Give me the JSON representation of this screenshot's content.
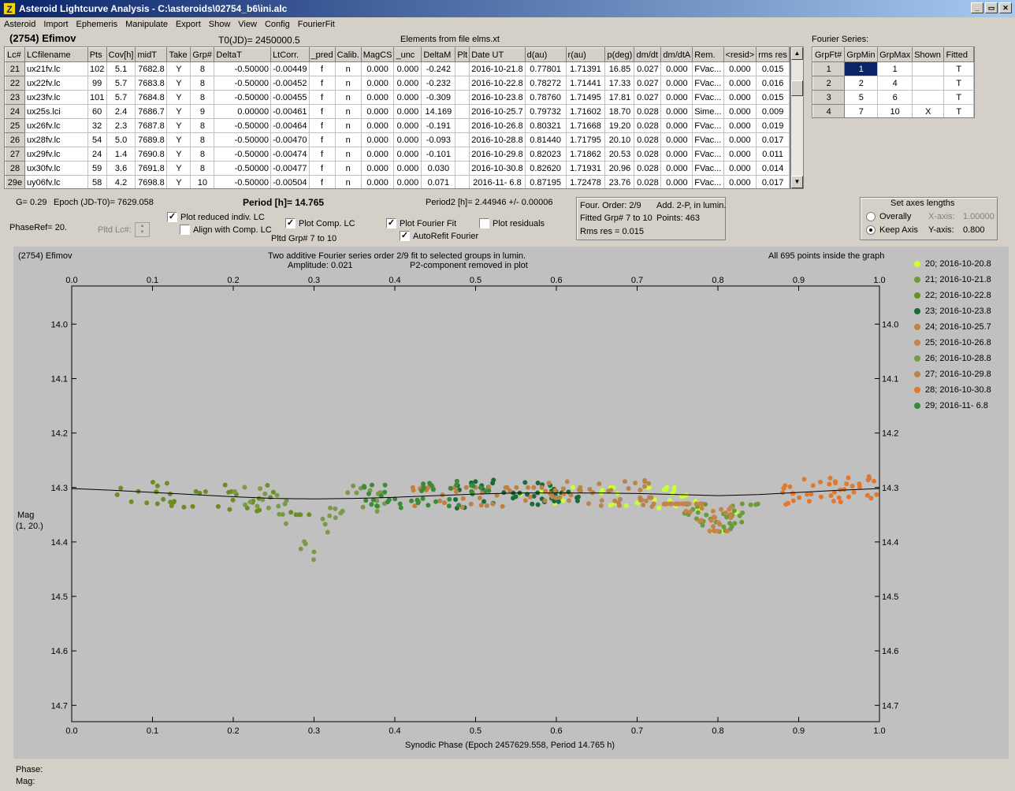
{
  "window": {
    "title": "Asteroid Lightcurve Analysis - C:\\asteroids\\02754_b6\\ini.alc",
    "icon_name": "app-icon",
    "icon_glyph": "Z",
    "min_label": "_",
    "max_label": "▭",
    "close_label": "✕"
  },
  "menu": [
    "Asteroid",
    "Import",
    "Ephemeris",
    "Manipulate",
    "Export",
    "Show",
    "View",
    "Config",
    "FourierFit"
  ],
  "header": {
    "asteroid": "(2754) Efimov",
    "t0": "T0(JD)= 2450000.5",
    "elements": "Elements from file elms.xt",
    "fourier_label": "Fourier Series:"
  },
  "lc_table": {
    "columns": [
      "Lc#",
      "LCfilename",
      "Pts",
      "Cov[h]",
      "midT",
      "Take",
      "Grp#",
      "DeltaT",
      "LtCorr.",
      "_pred",
      "Calib.",
      "MagCS",
      "_unc",
      "DeltaM",
      "Plt",
      "Date UT",
      "d(au)",
      "r(au)",
      "p(deg)",
      "dm/dt",
      "dm/dtA",
      "Rem.",
      "<resid>",
      "rms res"
    ],
    "rows": [
      [
        "21",
        "ux21fv.lc",
        "102",
        "5.1",
        "7682.8",
        "Y",
        "8",
        "-0.50000",
        "-0.00449",
        "f",
        "n",
        "0.000",
        "0.000",
        "-0.242",
        "",
        "2016-10-21.8",
        "0.77801",
        "1.71391",
        "16.85",
        "0.027",
        "0.000",
        "FVac...",
        "0.000",
        "0.015"
      ],
      [
        "22",
        "ux22fv.lc",
        "99",
        "5.7",
        "7683.8",
        "Y",
        "8",
        "-0.50000",
        "-0.00452",
        "f",
        "n",
        "0.000",
        "0.000",
        "-0.232",
        "",
        "2016-10-22.8",
        "0.78272",
        "1.71441",
        "17.33",
        "0.027",
        "0.000",
        "FVac...",
        "0.000",
        "0.016"
      ],
      [
        "23",
        "ux23fv.lc",
        "101",
        "5.7",
        "7684.8",
        "Y",
        "8",
        "-0.50000",
        "-0.00455",
        "f",
        "n",
        "0.000",
        "0.000",
        "-0.309",
        "",
        "2016-10-23.8",
        "0.78760",
        "1.71495",
        "17.81",
        "0.027",
        "0.000",
        "FVac...",
        "0.000",
        "0.015"
      ],
      [
        "24",
        "ux25s.lci",
        "60",
        "2.4",
        "7686.7",
        "Y",
        "9",
        "0.00000",
        "-0.00461",
        "f",
        "n",
        "0.000",
        "0.000",
        "14.169",
        "",
        "2016-10-25.7",
        "0.79732",
        "1.71602",
        "18.70",
        "0.028",
        "0.000",
        "Sime...",
        "0.000",
        "0.009"
      ],
      [
        "25",
        "ux26fv.lc",
        "32",
        "2.3",
        "7687.8",
        "Y",
        "8",
        "-0.50000",
        "-0.00464",
        "f",
        "n",
        "0.000",
        "0.000",
        "-0.191",
        "",
        "2016-10-26.8",
        "0.80321",
        "1.71668",
        "19.20",
        "0.028",
        "0.000",
        "FVac...",
        "0.000",
        "0.019"
      ],
      [
        "26",
        "ux28fv.lc",
        "54",
        "5.0",
        "7689.8",
        "Y",
        "8",
        "-0.50000",
        "-0.00470",
        "f",
        "n",
        "0.000",
        "0.000",
        "-0.093",
        "",
        "2016-10-28.8",
        "0.81440",
        "1.71795",
        "20.10",
        "0.028",
        "0.000",
        "FVac...",
        "0.000",
        "0.017"
      ],
      [
        "27",
        "ux29fv.lc",
        "24",
        "1.4",
        "7690.8",
        "Y",
        "8",
        "-0.50000",
        "-0.00474",
        "f",
        "n",
        "0.000",
        "0.000",
        "-0.101",
        "",
        "2016-10-29.8",
        "0.82023",
        "1.71862",
        "20.53",
        "0.028",
        "0.000",
        "FVac...",
        "0.000",
        "0.011"
      ],
      [
        "28",
        "ux30fv.lc",
        "59",
        "3.6",
        "7691.8",
        "Y",
        "8",
        "-0.50000",
        "-0.00477",
        "f",
        "n",
        "0.000",
        "0.000",
        "0.030",
        "",
        "2016-10-30.8",
        "0.82620",
        "1.71931",
        "20.96",
        "0.028",
        "0.000",
        "FVac...",
        "0.000",
        "0.014"
      ],
      [
        "29e",
        "uy06fv.lc",
        "58",
        "4.2",
        "7698.8",
        "Y",
        "10",
        "-0.50000",
        "-0.00504",
        "f",
        "n",
        "0.000",
        "0.000",
        "0.071",
        "",
        "2016-11- 6.8",
        "0.87195",
        "1.72478",
        "23.76",
        "0.028",
        "0.000",
        "FVac...",
        "0.000",
        "0.017"
      ]
    ]
  },
  "fourier_table": {
    "columns": [
      "GrpFt#",
      "GrpMin",
      "GrpMax",
      "Shown",
      "Fitted"
    ],
    "rows": [
      [
        "1",
        "1",
        "1",
        "",
        "T"
      ],
      [
        "2",
        "2",
        "4",
        "",
        "T"
      ],
      [
        "3",
        "5",
        "6",
        "",
        "T"
      ],
      [
        "4",
        "7",
        "10",
        "X",
        "T"
      ]
    ]
  },
  "controls": {
    "g": "G= 0.29",
    "epoch": "Epoch (JD-T0)= 7629.058",
    "period": "Period [h]= 14.765",
    "period2": "Period2 [h]= 2.44946 +/- 0.00006",
    "phaseref": "PhaseRef= 20.",
    "pltd_lc": "Pltd Lc#:",
    "pltd_grp": "Pltd Grp#  7   to   10",
    "chk_reduced": {
      "label": "Plot reduced indiv. LC",
      "checked": "✓"
    },
    "chk_align": {
      "label": "Align with Comp. LC",
      "checked": ""
    },
    "chk_comp": {
      "label": "Plot Comp. LC",
      "checked": "✓"
    },
    "chk_fourier": {
      "label": "Plot Fourier Fit",
      "checked": "✓"
    },
    "chk_refit": {
      "label": "AutoRefit Fourier",
      "checked": "✓"
    },
    "chk_resid": {
      "label": "Plot residuals",
      "checked": ""
    },
    "info": {
      "order": "Four. Order:  2/9",
      "add": "Add. 2-P, in lumin.",
      "fitted": "Fitted Grp# 7 to 10",
      "points": "Points: 463",
      "rms": "Rms res     = 0.015"
    },
    "axes": {
      "title": "Set axes lengths",
      "overally": "Overally",
      "keep": "Keep Axis",
      "xaxis_label": "X-axis:",
      "xaxis_value": "1.00000",
      "yaxis_label": "Y-axis:",
      "yaxis_value": "0.800"
    }
  },
  "plot": {
    "corner_title": "(2754) Efimov",
    "line1": "Two additive Fourier series order 2/9 fit to selected groups in lumin.",
    "line2a": "Amplitude: 0.021",
    "line2b": "P2-component removed in plot",
    "points_note": "All 695 points inside the graph",
    "ylabel1": "Mag",
    "ylabel2": "(1, 20.)",
    "xlabel": "Synodic Phase (Epoch 2457629.558, Period 14.765 h)"
  },
  "chart_data": {
    "type": "scatter",
    "xlim": [
      0.0,
      1.0
    ],
    "ylim": [
      13.93,
      14.73
    ],
    "y_inverted": true,
    "x_ticks": [
      "0.0",
      "0.1",
      "0.2",
      "0.3",
      "0.4",
      "0.5",
      "0.6",
      "0.7",
      "0.8",
      "0.9",
      "1.0"
    ],
    "y_ticks": [
      "14.0",
      "14.1",
      "14.2",
      "14.3",
      "14.4",
      "14.5",
      "14.6",
      "14.7"
    ],
    "fit_curve": {
      "x": [
        0.0,
        0.05,
        0.1,
        0.15,
        0.2,
        0.25,
        0.3,
        0.35,
        0.4,
        0.45,
        0.5,
        0.55,
        0.6,
        0.65,
        0.7,
        0.75,
        0.8,
        0.85,
        0.9,
        0.95,
        1.0
      ],
      "y": [
        14.302,
        14.305,
        14.309,
        14.313,
        14.317,
        14.32,
        14.321,
        14.32,
        14.318,
        14.315,
        14.312,
        14.31,
        14.31,
        14.31,
        14.311,
        14.313,
        14.315,
        14.313,
        14.309,
        14.305,
        14.302
      ]
    },
    "series": [
      {
        "name": "20; 2016-10-20.8",
        "color": "#ccff33",
        "x_range": [
          0.55,
          0.83
        ],
        "y": [
          14.3,
          14.4
        ]
      },
      {
        "name": "21; 2016-10-21.8",
        "color": "#6b9b3a",
        "x_range": [
          0.75,
          0.85
        ],
        "y": [
          14.33,
          14.42
        ]
      },
      {
        "name": "22; 2016-10-22.8",
        "color": "#6b8e23",
        "x_range": [
          0.05,
          0.3
        ],
        "y": [
          14.29,
          14.35
        ]
      },
      {
        "name": "23; 2016-10-23.8",
        "color": "#1a6b3c",
        "x_range": [
          0.47,
          0.63
        ],
        "y": [
          14.28,
          14.36
        ]
      },
      {
        "name": "24; 2016-10-25.7",
        "color": "#c08040",
        "x_range": [
          0.42,
          0.6
        ],
        "y": [
          14.3,
          14.37
        ]
      },
      {
        "name": "25; 2016-10-26.8",
        "color": "#c8824a",
        "x_range": [
          0.72,
          0.82
        ],
        "y": [
          14.33,
          14.38
        ]
      },
      {
        "name": "26; 2016-10-28.8",
        "color": "#7a9a4a",
        "x_range": [
          0.2,
          0.4
        ],
        "y": [
          14.28,
          14.44
        ]
      },
      {
        "name": "27; 2016-10-29.8",
        "color": "#b8864a",
        "x_range": [
          0.58,
          0.72
        ],
        "y": [
          14.28,
          14.36
        ]
      },
      {
        "name": "28; 2016-10-30.8",
        "color": "#e07830",
        "x_range": [
          0.88,
          1.0
        ],
        "y": [
          14.28,
          14.35
        ]
      },
      {
        "name": "29; 2016-11- 6.8",
        "color": "#3a8a3a",
        "x_range": [
          0.36,
          0.52
        ],
        "y": [
          14.27,
          14.36
        ]
      }
    ]
  },
  "footer": {
    "phase": "Phase:",
    "mag": "Mag:"
  }
}
